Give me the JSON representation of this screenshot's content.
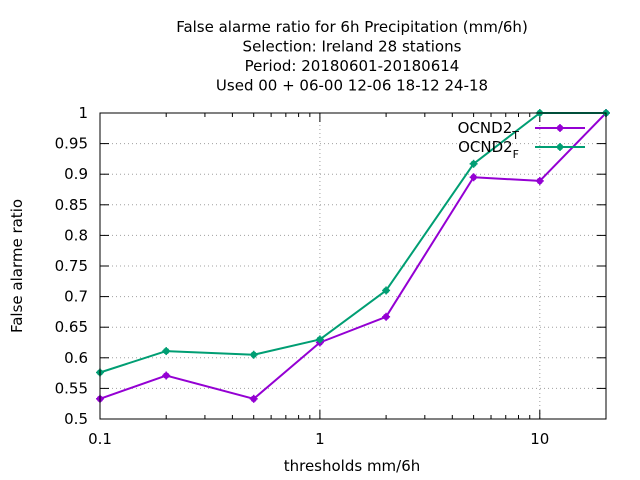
{
  "chart_data": {
    "type": "line",
    "title_lines": [
      "False alarme ratio  for 6h Precipitation (mm/6h)",
      "Selection: Ireland     28 stations",
      "Period: 20180601-20180614",
      "Used  00 + 06-00 12-06 18-12 24-18"
    ],
    "xlabel": "thresholds mm/6h",
    "ylabel": "False alarme ratio",
    "x_scale": "log",
    "xlim": [
      0.1,
      20
    ],
    "ylim": [
      0.5,
      1.0
    ],
    "x_ticks": [
      "0.1",
      "1",
      "10"
    ],
    "y_ticks": [
      "0.5",
      "0.55",
      "0.6",
      "0.65",
      "0.7",
      "0.75",
      "0.8",
      "0.85",
      "0.9",
      "0.95",
      "1"
    ],
    "grid": true,
    "legend_position": "top-right",
    "x": [
      0.1,
      0.2,
      0.5,
      1,
      2,
      5,
      10,
      20
    ],
    "series": [
      {
        "name": "OCND2",
        "name_subscript": "T",
        "color": "#9400d3",
        "values": [
          0.533,
          0.571,
          0.533,
          0.625,
          0.667,
          0.895,
          0.889,
          1.0
        ]
      },
      {
        "name": "OCND2",
        "name_subscript": "F",
        "color": "#009e73",
        "values": [
          0.576,
          0.611,
          0.605,
          0.63,
          0.71,
          0.917,
          1.0,
          1.0
        ]
      }
    ]
  }
}
